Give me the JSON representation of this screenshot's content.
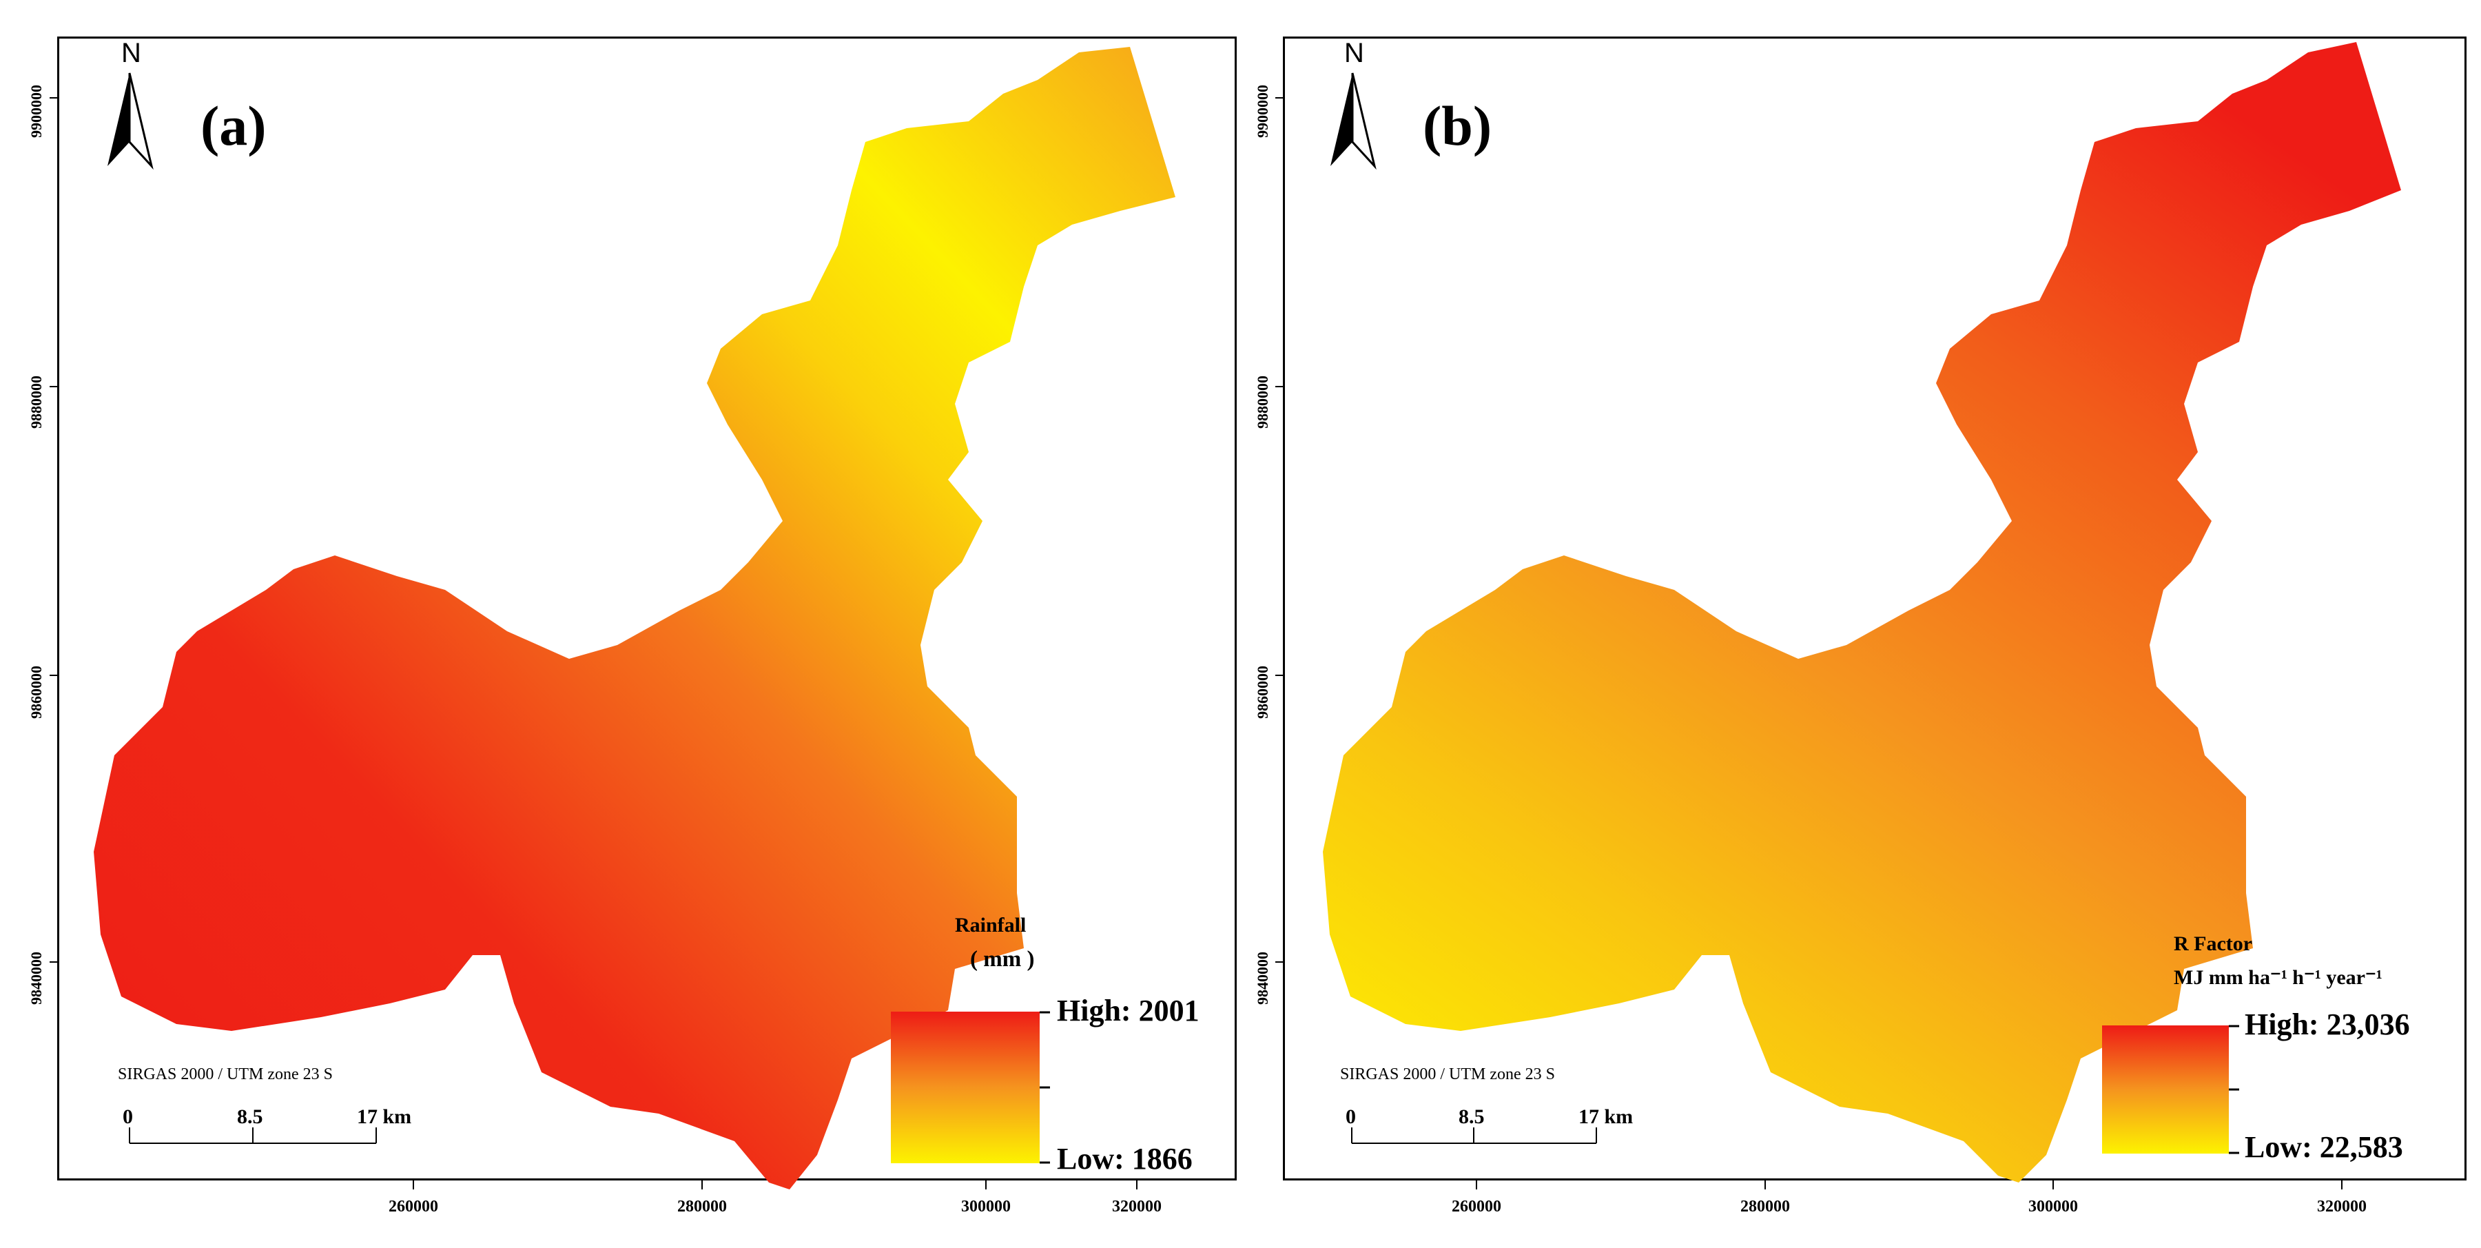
{
  "panels": [
    {
      "label": "(a)",
      "north": "N",
      "legend_title": "Rainfall",
      "legend_unit": "( mm )",
      "legend_high": "High: 2001",
      "legend_low": "Low:  1866",
      "crs": "SIRGAS 2000 / UTM zone 23 S",
      "scalebar": [
        "0",
        "8.5",
        "17 km"
      ],
      "colors": {
        "high": "#ee1c16",
        "mid": "#f5941e",
        "low": "#fdf200"
      }
    },
    {
      "label": "(b)",
      "north": "N",
      "legend_title": "R Factor",
      "legend_unit": "MJ mm ha⁻¹ h⁻¹ year⁻¹",
      "legend_high": "High: 23,036",
      "legend_low": "Low:  22,583",
      "crs": "SIRGAS 2000 / UTM zone 23 S",
      "scalebar": [
        "0",
        "8.5",
        "17 km"
      ],
      "colors": {
        "high": "#ee1c16",
        "mid": "#f5941e",
        "low": "#fdf200"
      }
    }
  ],
  "x_ticks": [
    "260000",
    "280000",
    "300000",
    "320000"
  ],
  "y_ticks": [
    "9900000",
    "9880000",
    "9860000",
    "9840000"
  ]
}
